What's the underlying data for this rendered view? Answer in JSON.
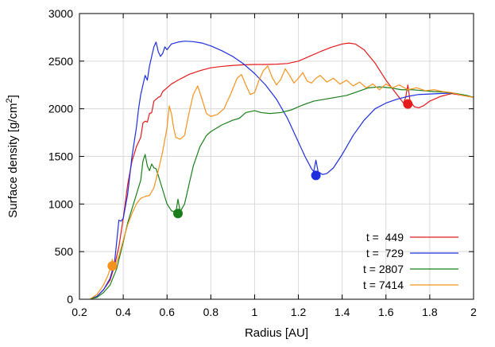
{
  "chart_data": {
    "type": "line",
    "xlabel": "Radius [AU]",
    "ylabel": "Surface density [g/cm",
    "ylabel_sup": "2",
    "ylabel_end": "]",
    "xlim": [
      0.2,
      2.0
    ],
    "ylim": [
      0,
      3000
    ],
    "x_ticks": [
      0.2,
      0.4,
      0.6,
      0.8,
      1.0,
      1.2,
      1.4,
      1.6,
      1.8,
      2.0
    ],
    "x_tick_labels": [
      "0.2",
      "0.4",
      "0.6",
      "0.8",
      "1",
      "1.2",
      "1.4",
      "1.6",
      "1.8",
      "2"
    ],
    "y_ticks": [
      0,
      500,
      1000,
      1500,
      2000,
      2500,
      3000
    ],
    "y_tick_labels": [
      "0",
      "500",
      "1000",
      "1500",
      "2000",
      "2500",
      "3000"
    ],
    "grid": true,
    "legend_position": "bottom-right",
    "series": [
      {
        "name": "t =  449",
        "color": "#e41a1c",
        "marker": [
          1.7,
          2050
        ],
        "points": [
          [
            0.25,
            5
          ],
          [
            0.28,
            30
          ],
          [
            0.31,
            100
          ],
          [
            0.34,
            200
          ],
          [
            0.36,
            350
          ],
          [
            0.38,
            550
          ],
          [
            0.4,
            850
          ],
          [
            0.42,
            1200
          ],
          [
            0.44,
            1450
          ],
          [
            0.46,
            1600
          ],
          [
            0.48,
            1700
          ],
          [
            0.49,
            1850
          ],
          [
            0.5,
            1870
          ],
          [
            0.51,
            1860
          ],
          [
            0.52,
            1950
          ],
          [
            0.53,
            1960
          ],
          [
            0.54,
            2080
          ],
          [
            0.55,
            2100
          ],
          [
            0.56,
            2120
          ],
          [
            0.57,
            2130
          ],
          [
            0.58,
            2180
          ],
          [
            0.6,
            2220
          ],
          [
            0.62,
            2260
          ],
          [
            0.65,
            2300
          ],
          [
            0.7,
            2360
          ],
          [
            0.75,
            2400
          ],
          [
            0.8,
            2430
          ],
          [
            0.85,
            2445
          ],
          [
            0.9,
            2455
          ],
          [
            0.95,
            2462
          ],
          [
            1.0,
            2465
          ],
          [
            1.05,
            2465
          ],
          [
            1.1,
            2468
          ],
          [
            1.15,
            2475
          ],
          [
            1.2,
            2500
          ],
          [
            1.25,
            2550
          ],
          [
            1.3,
            2600
          ],
          [
            1.35,
            2645
          ],
          [
            1.4,
            2680
          ],
          [
            1.43,
            2690
          ],
          [
            1.46,
            2680
          ],
          [
            1.5,
            2620
          ],
          [
            1.55,
            2480
          ],
          [
            1.6,
            2300
          ],
          [
            1.65,
            2150
          ],
          [
            1.68,
            2060
          ],
          [
            1.69,
            2120
          ],
          [
            1.7,
            2250
          ],
          [
            1.71,
            2080
          ],
          [
            1.73,
            2020
          ],
          [
            1.75,
            2010
          ],
          [
            1.77,
            2030
          ],
          [
            1.8,
            2080
          ],
          [
            1.85,
            2130
          ],
          [
            1.9,
            2160
          ],
          [
            1.95,
            2140
          ],
          [
            2.0,
            2120
          ]
        ]
      },
      {
        "name": "t =  729",
        "color": "#1f2fe0",
        "marker": [
          1.28,
          1300
        ],
        "points": [
          [
            0.25,
            5
          ],
          [
            0.28,
            30
          ],
          [
            0.31,
            100
          ],
          [
            0.34,
            220
          ],
          [
            0.36,
            380
          ],
          [
            0.37,
            600
          ],
          [
            0.38,
            830
          ],
          [
            0.39,
            820
          ],
          [
            0.4,
            850
          ],
          [
            0.42,
            1100
          ],
          [
            0.44,
            1500
          ],
          [
            0.46,
            1800
          ],
          [
            0.47,
            2000
          ],
          [
            0.48,
            2150
          ],
          [
            0.49,
            2250
          ],
          [
            0.5,
            2350
          ],
          [
            0.51,
            2300
          ],
          [
            0.52,
            2450
          ],
          [
            0.53,
            2550
          ],
          [
            0.54,
            2650
          ],
          [
            0.55,
            2700
          ],
          [
            0.56,
            2600
          ],
          [
            0.57,
            2550
          ],
          [
            0.58,
            2580
          ],
          [
            0.59,
            2650
          ],
          [
            0.6,
            2620
          ],
          [
            0.62,
            2680
          ],
          [
            0.65,
            2700
          ],
          [
            0.68,
            2710
          ],
          [
            0.72,
            2705
          ],
          [
            0.76,
            2690
          ],
          [
            0.8,
            2660
          ],
          [
            0.85,
            2610
          ],
          [
            0.9,
            2550
          ],
          [
            0.95,
            2470
          ],
          [
            1.0,
            2370
          ],
          [
            1.05,
            2250
          ],
          [
            1.1,
            2100
          ],
          [
            1.15,
            1900
          ],
          [
            1.2,
            1650
          ],
          [
            1.23,
            1500
          ],
          [
            1.26,
            1370
          ],
          [
            1.27,
            1340
          ],
          [
            1.28,
            1460
          ],
          [
            1.29,
            1340
          ],
          [
            1.31,
            1310
          ],
          [
            1.33,
            1320
          ],
          [
            1.36,
            1380
          ],
          [
            1.4,
            1520
          ],
          [
            1.45,
            1720
          ],
          [
            1.5,
            1880
          ],
          [
            1.55,
            2000
          ],
          [
            1.6,
            2060
          ],
          [
            1.65,
            2100
          ],
          [
            1.7,
            2130
          ],
          [
            1.75,
            2150
          ],
          [
            1.8,
            2155
          ],
          [
            1.85,
            2160
          ],
          [
            1.9,
            2165
          ],
          [
            1.95,
            2145
          ],
          [
            2.0,
            2120
          ]
        ]
      },
      {
        "name": "t = 2807",
        "color": "#1a7f1a",
        "marker": [
          0.65,
          900
        ],
        "points": [
          [
            0.25,
            5
          ],
          [
            0.28,
            20
          ],
          [
            0.31,
            70
          ],
          [
            0.34,
            150
          ],
          [
            0.37,
            320
          ],
          [
            0.4,
            600
          ],
          [
            0.42,
            800
          ],
          [
            0.44,
            950
          ],
          [
            0.46,
            1100
          ],
          [
            0.48,
            1250
          ],
          [
            0.49,
            1450
          ],
          [
            0.5,
            1520
          ],
          [
            0.51,
            1400
          ],
          [
            0.52,
            1350
          ],
          [
            0.53,
            1420
          ],
          [
            0.54,
            1380
          ],
          [
            0.55,
            1370
          ],
          [
            0.56,
            1300
          ],
          [
            0.58,
            1150
          ],
          [
            0.6,
            1000
          ],
          [
            0.62,
            930
          ],
          [
            0.64,
            910
          ],
          [
            0.65,
            1050
          ],
          [
            0.66,
            920
          ],
          [
            0.68,
            1000
          ],
          [
            0.7,
            1200
          ],
          [
            0.72,
            1400
          ],
          [
            0.75,
            1600
          ],
          [
            0.78,
            1720
          ],
          [
            0.8,
            1760
          ],
          [
            0.85,
            1830
          ],
          [
            0.9,
            1880
          ],
          [
            0.93,
            1900
          ],
          [
            0.96,
            1960
          ],
          [
            1.0,
            1980
          ],
          [
            1.03,
            1960
          ],
          [
            1.07,
            1950
          ],
          [
            1.12,
            1960
          ],
          [
            1.17,
            1990
          ],
          [
            1.22,
            2040
          ],
          [
            1.27,
            2080
          ],
          [
            1.32,
            2100
          ],
          [
            1.37,
            2120
          ],
          [
            1.42,
            2140
          ],
          [
            1.47,
            2180
          ],
          [
            1.52,
            2220
          ],
          [
            1.57,
            2230
          ],
          [
            1.62,
            2220
          ],
          [
            1.67,
            2200
          ],
          [
            1.72,
            2200
          ],
          [
            1.77,
            2190
          ],
          [
            1.82,
            2180
          ],
          [
            1.87,
            2175
          ],
          [
            1.92,
            2160
          ],
          [
            1.97,
            2140
          ],
          [
            2.0,
            2120
          ]
        ]
      },
      {
        "name": "t = 7414",
        "color": "#f5921e",
        "marker": [
          0.35,
          350
        ],
        "points": [
          [
            0.25,
            5
          ],
          [
            0.28,
            50
          ],
          [
            0.31,
            150
          ],
          [
            0.33,
            250
          ],
          [
            0.345,
            350
          ],
          [
            0.35,
            420
          ],
          [
            0.36,
            330
          ],
          [
            0.38,
            450
          ],
          [
            0.4,
            620
          ],
          [
            0.42,
            780
          ],
          [
            0.44,
            900
          ],
          [
            0.46,
            1000
          ],
          [
            0.48,
            1060
          ],
          [
            0.5,
            1080
          ],
          [
            0.52,
            1090
          ],
          [
            0.54,
            1170
          ],
          [
            0.56,
            1350
          ],
          [
            0.58,
            1550
          ],
          [
            0.6,
            1800
          ],
          [
            0.61,
            2030
          ],
          [
            0.62,
            1950
          ],
          [
            0.63,
            1800
          ],
          [
            0.64,
            1700
          ],
          [
            0.66,
            1680
          ],
          [
            0.68,
            1720
          ],
          [
            0.7,
            1950
          ],
          [
            0.72,
            2150
          ],
          [
            0.74,
            2240
          ],
          [
            0.76,
            2100
          ],
          [
            0.78,
            1950
          ],
          [
            0.8,
            1920
          ],
          [
            0.83,
            1940
          ],
          [
            0.86,
            2000
          ],
          [
            0.89,
            2150
          ],
          [
            0.92,
            2320
          ],
          [
            0.94,
            2360
          ],
          [
            0.96,
            2250
          ],
          [
            0.98,
            2150
          ],
          [
            1.0,
            2170
          ],
          [
            1.02,
            2300
          ],
          [
            1.04,
            2400
          ],
          [
            1.06,
            2450
          ],
          [
            1.08,
            2330
          ],
          [
            1.1,
            2250
          ],
          [
            1.12,
            2310
          ],
          [
            1.14,
            2420
          ],
          [
            1.16,
            2350
          ],
          [
            1.18,
            2270
          ],
          [
            1.2,
            2320
          ],
          [
            1.22,
            2380
          ],
          [
            1.24,
            2290
          ],
          [
            1.26,
            2270
          ],
          [
            1.28,
            2320
          ],
          [
            1.3,
            2350
          ],
          [
            1.33,
            2280
          ],
          [
            1.36,
            2320
          ],
          [
            1.39,
            2260
          ],
          [
            1.42,
            2300
          ],
          [
            1.45,
            2240
          ],
          [
            1.48,
            2280
          ],
          [
            1.51,
            2220
          ],
          [
            1.54,
            2260
          ],
          [
            1.57,
            2200
          ],
          [
            1.6,
            2260
          ],
          [
            1.63,
            2220
          ],
          [
            1.66,
            2250
          ],
          [
            1.7,
            2200
          ],
          [
            1.74,
            2220
          ],
          [
            1.78,
            2190
          ],
          [
            1.82,
            2200
          ],
          [
            1.86,
            2180
          ],
          [
            1.9,
            2170
          ],
          [
            1.95,
            2140
          ],
          [
            2.0,
            2120
          ]
        ]
      }
    ]
  }
}
